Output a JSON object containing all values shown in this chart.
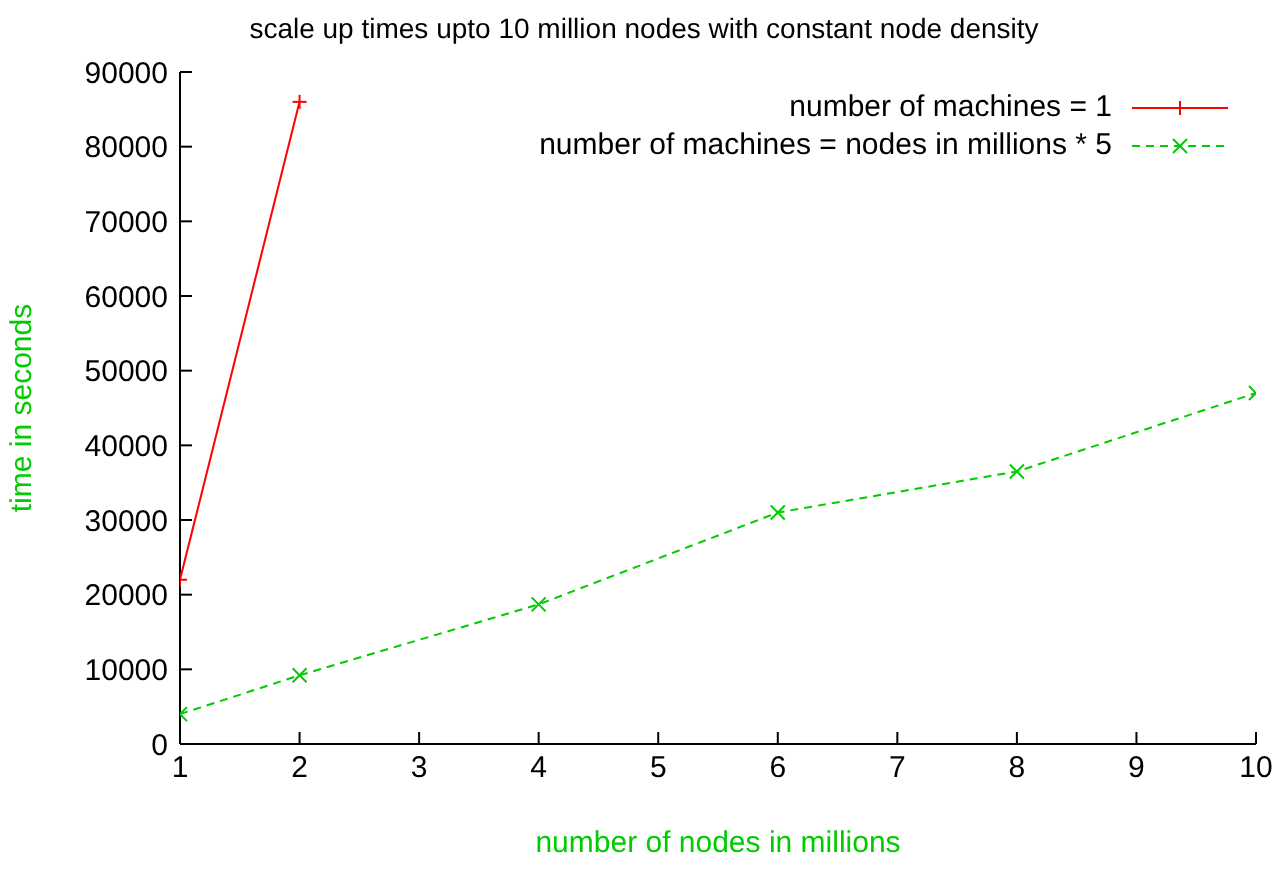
{
  "chart_data": {
    "type": "line",
    "title": "scale up times upto 10 million nodes with constant node density",
    "xlabel": "number of nodes in millions",
    "ylabel": "time in seconds",
    "xlim": [
      1,
      10
    ],
    "xticks": [
      1,
      2,
      3,
      4,
      5,
      6,
      7,
      8,
      9,
      10
    ],
    "ylim": [
      0,
      90000
    ],
    "yticks": [
      0,
      10000,
      20000,
      30000,
      40000,
      50000,
      60000,
      70000,
      80000,
      90000
    ],
    "grid": false,
    "legend": "top right",
    "series": [
      {
        "name": "number of machines = 1",
        "color": "#ff0000",
        "x": [
          1,
          2
        ],
        "values": [
          22000,
          86000
        ],
        "marker": "plus",
        "line_style": "solid"
      },
      {
        "name": "number of machines = nodes in millions * 5",
        "color": "#00cc00",
        "x": [
          1,
          2,
          4,
          6,
          8,
          10
        ],
        "values": [
          4000,
          9200,
          18700,
          31000,
          36500,
          47000
        ],
        "marker": "cross",
        "line_style": "dashed"
      }
    ]
  }
}
